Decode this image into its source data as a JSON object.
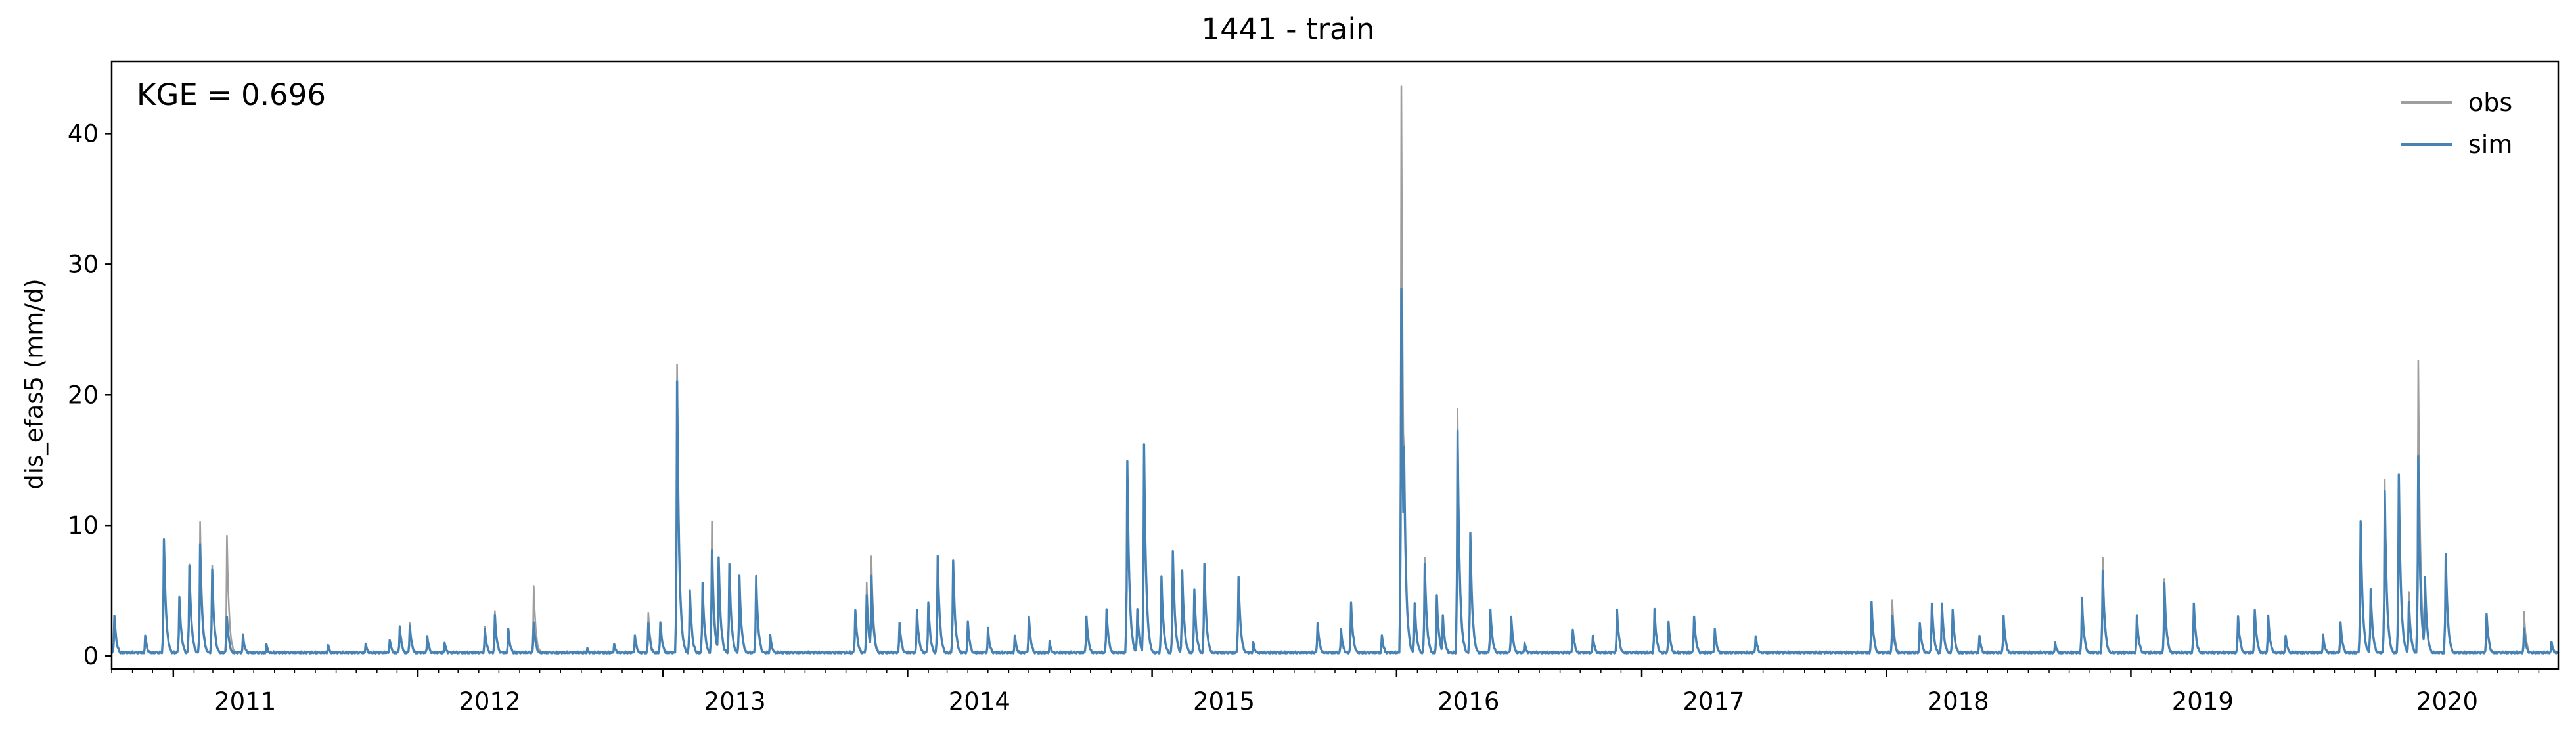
{
  "chart_data": {
    "type": "line",
    "title": "1441 - train",
    "ylabel": "dis_efas5 (mm/d)",
    "xlabel": "",
    "annotation": "KGE = 0.696",
    "xlim": [
      "2010-10-01",
      "2020-09-30"
    ],
    "ylim": [
      -1,
      45.5
    ],
    "yticks": [
      0,
      10,
      20,
      30,
      40
    ],
    "ytick_labels": [
      "0",
      "10",
      "20",
      "30",
      "40"
    ],
    "xticks": [
      "2011-01-01",
      "2012-01-01",
      "2013-01-01",
      "2014-01-01",
      "2015-01-01",
      "2016-01-01",
      "2017-01-01",
      "2018-01-01",
      "2019-01-01",
      "2020-01-01"
    ],
    "xtick_labels": [
      "2011",
      "2012",
      "2013",
      "2014",
      "2015",
      "2016",
      "2017",
      "2018",
      "2019",
      "2020"
    ],
    "legend_placement": "top-right",
    "grid": false,
    "baseline": 0.2,
    "series": [
      {
        "name": "obs",
        "color": "#9e9e9e",
        "peaks": [
          [
            "2010-10-05",
            3.0
          ],
          [
            "2010-11-20",
            1.5
          ],
          [
            "2010-12-18",
            9.0
          ],
          [
            "2011-01-10",
            4.5
          ],
          [
            "2011-01-25",
            7.0
          ],
          [
            "2011-02-10",
            10.2
          ],
          [
            "2011-02-28",
            6.8
          ],
          [
            "2011-03-22",
            9.2
          ],
          [
            "2011-04-15",
            1.5
          ],
          [
            "2011-05-20",
            0.8
          ],
          [
            "2011-08-20",
            0.8
          ],
          [
            "2011-10-15",
            0.9
          ],
          [
            "2011-11-20",
            1.2
          ],
          [
            "2011-12-05",
            2.3
          ],
          [
            "2011-12-20",
            2.5
          ],
          [
            "2012-01-15",
            1.5
          ],
          [
            "2012-02-10",
            1.0
          ],
          [
            "2012-04-10",
            2.2
          ],
          [
            "2012-04-25",
            3.3
          ],
          [
            "2012-05-15",
            2.0
          ],
          [
            "2012-06-22",
            5.3
          ],
          [
            "2012-09-10",
            0.5
          ],
          [
            "2012-10-20",
            0.9
          ],
          [
            "2012-11-20",
            1.5
          ],
          [
            "2012-12-10",
            3.3
          ],
          [
            "2012-12-28",
            2.5
          ],
          [
            "2013-01-22",
            22.3
          ],
          [
            "2013-02-10",
            5.0
          ],
          [
            "2013-03-01",
            5.5
          ],
          [
            "2013-03-15",
            10.2
          ],
          [
            "2013-03-25",
            7.5
          ],
          [
            "2013-04-10",
            7.0
          ],
          [
            "2013-04-25",
            6.0
          ],
          [
            "2013-05-20",
            6.0
          ],
          [
            "2013-06-10",
            1.5
          ],
          [
            "2013-10-15",
            3.5
          ],
          [
            "2013-11-01",
            5.5
          ],
          [
            "2013-11-08",
            7.5
          ],
          [
            "2013-12-20",
            2.5
          ],
          [
            "2014-01-15",
            3.5
          ],
          [
            "2014-02-01",
            4.0
          ],
          [
            "2014-02-15",
            7.6
          ],
          [
            "2014-03-10",
            7.2
          ],
          [
            "2014-04-01",
            2.5
          ],
          [
            "2014-05-01",
            2.0
          ],
          [
            "2014-06-10",
            1.5
          ],
          [
            "2014-07-01",
            3.0
          ],
          [
            "2014-08-01",
            1.0
          ],
          [
            "2014-09-25",
            3.0
          ],
          [
            "2014-10-25",
            3.5
          ],
          [
            "2014-11-25",
            14.9
          ],
          [
            "2014-12-10",
            3.5
          ],
          [
            "2014-12-20",
            16.2
          ],
          [
            "2015-01-15",
            6.0
          ],
          [
            "2015-02-01",
            8.0
          ],
          [
            "2015-02-15",
            6.5
          ],
          [
            "2015-03-05",
            5.0
          ],
          [
            "2015-03-20",
            7.0
          ],
          [
            "2015-05-10",
            6.0
          ],
          [
            "2015-06-01",
            1.0
          ],
          [
            "2015-09-05",
            2.5
          ],
          [
            "2015-10-10",
            2.0
          ],
          [
            "2015-10-25",
            4.0
          ],
          [
            "2015-12-10",
            1.5
          ],
          [
            "2016-01-08",
            43.5
          ],
          [
            "2016-01-12",
            16.0
          ],
          [
            "2016-01-28",
            4.0
          ],
          [
            "2016-02-12",
            7.5
          ],
          [
            "2016-03-01",
            4.5
          ],
          [
            "2016-03-10",
            3.0
          ],
          [
            "2016-04-01",
            18.9
          ],
          [
            "2016-04-20",
            9.3
          ],
          [
            "2016-05-20",
            3.5
          ],
          [
            "2016-06-20",
            3.0
          ],
          [
            "2016-07-10",
            1.0
          ],
          [
            "2016-09-20",
            2.0
          ],
          [
            "2016-10-20",
            1.5
          ],
          [
            "2016-11-25",
            3.5
          ],
          [
            "2017-01-20",
            3.5
          ],
          [
            "2017-02-10",
            2.5
          ],
          [
            "2017-03-20",
            3.0
          ],
          [
            "2017-04-20",
            2.0
          ],
          [
            "2017-06-20",
            1.5
          ],
          [
            "2017-12-10",
            4.0
          ],
          [
            "2018-01-10",
            4.2
          ],
          [
            "2018-02-20",
            2.5
          ],
          [
            "2018-03-10",
            4.0
          ],
          [
            "2018-03-25",
            4.0
          ],
          [
            "2018-04-10",
            3.5
          ],
          [
            "2018-05-20",
            1.5
          ],
          [
            "2018-06-25",
            3.0
          ],
          [
            "2018-09-10",
            1.0
          ],
          [
            "2018-10-20",
            4.3
          ],
          [
            "2018-11-20",
            7.5
          ],
          [
            "2019-01-10",
            3.0
          ],
          [
            "2019-02-20",
            5.8
          ],
          [
            "2019-04-05",
            4.0
          ],
          [
            "2019-06-10",
            3.0
          ],
          [
            "2019-07-05",
            3.5
          ],
          [
            "2019-07-25",
            3.0
          ],
          [
            "2019-08-20",
            1.5
          ],
          [
            "2019-10-15",
            1.5
          ],
          [
            "2019-11-10",
            2.5
          ],
          [
            "2019-12-10",
            10.3
          ],
          [
            "2019-12-25",
            5.0
          ],
          [
            "2020-01-15",
            13.4
          ],
          [
            "2020-02-05",
            13.8
          ],
          [
            "2020-02-20",
            4.8
          ],
          [
            "2020-03-05",
            22.6
          ],
          [
            "2020-03-15",
            6.0
          ],
          [
            "2020-04-15",
            7.8
          ],
          [
            "2020-06-15",
            3.2
          ],
          [
            "2020-08-10",
            3.3
          ],
          [
            "2020-09-20",
            1.0
          ]
        ]
      },
      {
        "name": "sim",
        "color": "#4682b4",
        "peaks": [
          [
            "2010-10-05",
            3.0
          ],
          [
            "2010-11-20",
            1.5
          ],
          [
            "2010-12-18",
            8.9
          ],
          [
            "2011-01-10",
            4.5
          ],
          [
            "2011-01-25",
            6.9
          ],
          [
            "2011-02-10",
            8.5
          ],
          [
            "2011-02-28",
            6.5
          ],
          [
            "2011-03-22",
            3.0
          ],
          [
            "2011-04-15",
            1.5
          ],
          [
            "2011-05-20",
            0.8
          ],
          [
            "2011-08-20",
            0.8
          ],
          [
            "2011-10-15",
            0.9
          ],
          [
            "2011-11-20",
            1.2
          ],
          [
            "2011-12-05",
            2.2
          ],
          [
            "2011-12-20",
            2.3
          ],
          [
            "2012-01-15",
            1.5
          ],
          [
            "2012-02-10",
            1.0
          ],
          [
            "2012-04-10",
            2.0
          ],
          [
            "2012-04-25",
            3.0
          ],
          [
            "2012-05-15",
            2.0
          ],
          [
            "2012-06-22",
            2.5
          ],
          [
            "2012-09-10",
            0.5
          ],
          [
            "2012-10-20",
            0.9
          ],
          [
            "2012-11-20",
            1.5
          ],
          [
            "2012-12-10",
            2.5
          ],
          [
            "2012-12-28",
            2.5
          ],
          [
            "2013-01-22",
            21.0
          ],
          [
            "2013-02-10",
            5.0
          ],
          [
            "2013-03-01",
            5.5
          ],
          [
            "2013-03-15",
            8.0
          ],
          [
            "2013-03-25",
            7.5
          ],
          [
            "2013-04-10",
            7.0
          ],
          [
            "2013-04-25",
            6.0
          ],
          [
            "2013-05-20",
            6.0
          ],
          [
            "2013-06-10",
            1.5
          ],
          [
            "2013-10-15",
            3.5
          ],
          [
            "2013-11-01",
            4.5
          ],
          [
            "2013-11-08",
            6.0
          ],
          [
            "2013-12-20",
            2.5
          ],
          [
            "2014-01-15",
            3.5
          ],
          [
            "2014-02-01",
            4.0
          ],
          [
            "2014-02-15",
            7.6
          ],
          [
            "2014-03-10",
            7.2
          ],
          [
            "2014-04-01",
            2.5
          ],
          [
            "2014-05-01",
            2.0
          ],
          [
            "2014-06-10",
            1.5
          ],
          [
            "2014-07-01",
            3.0
          ],
          [
            "2014-08-01",
            1.0
          ],
          [
            "2014-09-25",
            3.0
          ],
          [
            "2014-10-25",
            3.5
          ],
          [
            "2014-11-25",
            14.9
          ],
          [
            "2014-12-10",
            3.5
          ],
          [
            "2014-12-20",
            16.2
          ],
          [
            "2015-01-15",
            6.0
          ],
          [
            "2015-02-01",
            8.0
          ],
          [
            "2015-02-15",
            6.5
          ],
          [
            "2015-03-05",
            5.0
          ],
          [
            "2015-03-20",
            7.0
          ],
          [
            "2015-05-10",
            6.0
          ],
          [
            "2015-06-01",
            1.0
          ],
          [
            "2015-09-05",
            2.5
          ],
          [
            "2015-10-10",
            2.0
          ],
          [
            "2015-10-25",
            4.0
          ],
          [
            "2015-12-10",
            1.5
          ],
          [
            "2016-01-08",
            28.0
          ],
          [
            "2016-01-12",
            16.0
          ],
          [
            "2016-01-28",
            4.0
          ],
          [
            "2016-02-12",
            7.0
          ],
          [
            "2016-03-01",
            4.5
          ],
          [
            "2016-03-10",
            3.0
          ],
          [
            "2016-04-01",
            17.2
          ],
          [
            "2016-04-20",
            9.3
          ],
          [
            "2016-05-20",
            3.5
          ],
          [
            "2016-06-20",
            3.0
          ],
          [
            "2016-07-10",
            1.0
          ],
          [
            "2016-09-20",
            2.0
          ],
          [
            "2016-10-20",
            1.5
          ],
          [
            "2016-11-25",
            3.5
          ],
          [
            "2017-01-20",
            3.5
          ],
          [
            "2017-02-10",
            2.5
          ],
          [
            "2017-03-20",
            3.0
          ],
          [
            "2017-04-20",
            2.0
          ],
          [
            "2017-06-20",
            1.5
          ],
          [
            "2017-12-10",
            4.0
          ],
          [
            "2018-01-10",
            3.0
          ],
          [
            "2018-02-20",
            2.5
          ],
          [
            "2018-03-10",
            4.0
          ],
          [
            "2018-03-25",
            4.0
          ],
          [
            "2018-04-10",
            3.5
          ],
          [
            "2018-05-20",
            1.5
          ],
          [
            "2018-06-25",
            3.0
          ],
          [
            "2018-09-10",
            1.0
          ],
          [
            "2018-10-20",
            4.3
          ],
          [
            "2018-11-20",
            6.5
          ],
          [
            "2019-01-10",
            3.0
          ],
          [
            "2019-02-20",
            5.5
          ],
          [
            "2019-04-05",
            4.0
          ],
          [
            "2019-06-10",
            3.0
          ],
          [
            "2019-07-05",
            3.5
          ],
          [
            "2019-07-25",
            3.0
          ],
          [
            "2019-08-20",
            1.5
          ],
          [
            "2019-10-15",
            1.5
          ],
          [
            "2019-11-10",
            2.5
          ],
          [
            "2019-12-10",
            10.3
          ],
          [
            "2019-12-25",
            5.0
          ],
          [
            "2020-01-15",
            12.5
          ],
          [
            "2020-02-05",
            13.8
          ],
          [
            "2020-02-20",
            4.0
          ],
          [
            "2020-03-05",
            15.3
          ],
          [
            "2020-03-15",
            6.0
          ],
          [
            "2020-04-15",
            7.8
          ],
          [
            "2020-06-15",
            3.2
          ],
          [
            "2020-08-10",
            2.0
          ],
          [
            "2020-09-20",
            1.0
          ]
        ]
      }
    ]
  }
}
